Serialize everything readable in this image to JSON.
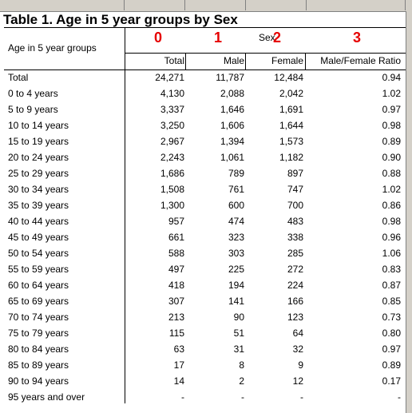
{
  "table": {
    "title": "Table 1. Age in 5 year groups by Sex",
    "row_header": "Age in 5 year groups",
    "group_header": "Sex",
    "column_numbers": [
      "0",
      "1",
      "2",
      "3"
    ],
    "columns": [
      "Total",
      "Male",
      "Female",
      "Male/Female Ratio"
    ],
    "rows": [
      {
        "label": "Total",
        "values": [
          "24,271",
          "11,787",
          "12,484",
          "0.94"
        ]
      },
      {
        "label": "0 to 4 years",
        "values": [
          "4,130",
          "2,088",
          "2,042",
          "1.02"
        ]
      },
      {
        "label": "5 to 9 years",
        "values": [
          "3,337",
          "1,646",
          "1,691",
          "0.97"
        ]
      },
      {
        "label": "10 to 14 years",
        "values": [
          "3,250",
          "1,606",
          "1,644",
          "0.98"
        ]
      },
      {
        "label": "15 to 19 years",
        "values": [
          "2,967",
          "1,394",
          "1,573",
          "0.89"
        ]
      },
      {
        "label": "20 to 24 years",
        "values": [
          "2,243",
          "1,061",
          "1,182",
          "0.90"
        ]
      },
      {
        "label": "25 to 29 years",
        "values": [
          "1,686",
          "789",
          "897",
          "0.88"
        ]
      },
      {
        "label": "30 to 34 years",
        "values": [
          "1,508",
          "761",
          "747",
          "1.02"
        ]
      },
      {
        "label": "35 to 39 years",
        "values": [
          "1,300",
          "600",
          "700",
          "0.86"
        ]
      },
      {
        "label": "40 to 44 years",
        "values": [
          "957",
          "474",
          "483",
          "0.98"
        ]
      },
      {
        "label": "45 to 49 years",
        "values": [
          "661",
          "323",
          "338",
          "0.96"
        ]
      },
      {
        "label": "50 to 54 years",
        "values": [
          "588",
          "303",
          "285",
          "1.06"
        ]
      },
      {
        "label": "55 to 59 years",
        "values": [
          "497",
          "225",
          "272",
          "0.83"
        ]
      },
      {
        "label": "60 to 64 years",
        "values": [
          "418",
          "194",
          "224",
          "0.87"
        ]
      },
      {
        "label": "65 to 69 years",
        "values": [
          "307",
          "141",
          "166",
          "0.85"
        ]
      },
      {
        "label": "70 to 74 years",
        "values": [
          "213",
          "90",
          "123",
          "0.73"
        ]
      },
      {
        "label": "75 to 79 years",
        "values": [
          "115",
          "51",
          "64",
          "0.80"
        ]
      },
      {
        "label": "80 to 84 years",
        "values": [
          "63",
          "31",
          "32",
          "0.97"
        ]
      },
      {
        "label": "85 to 89 years",
        "values": [
          "17",
          "8",
          "9",
          "0.89"
        ]
      },
      {
        "label": "90 to 94 years",
        "values": [
          "14",
          "2",
          "12",
          "0.17"
        ]
      },
      {
        "label": "95 years and over",
        "values": [
          "-",
          "-",
          "-",
          "-"
        ]
      }
    ]
  },
  "colors": {
    "annotation_red": "#e60000",
    "sheet_grey": "#d4d0c8"
  }
}
